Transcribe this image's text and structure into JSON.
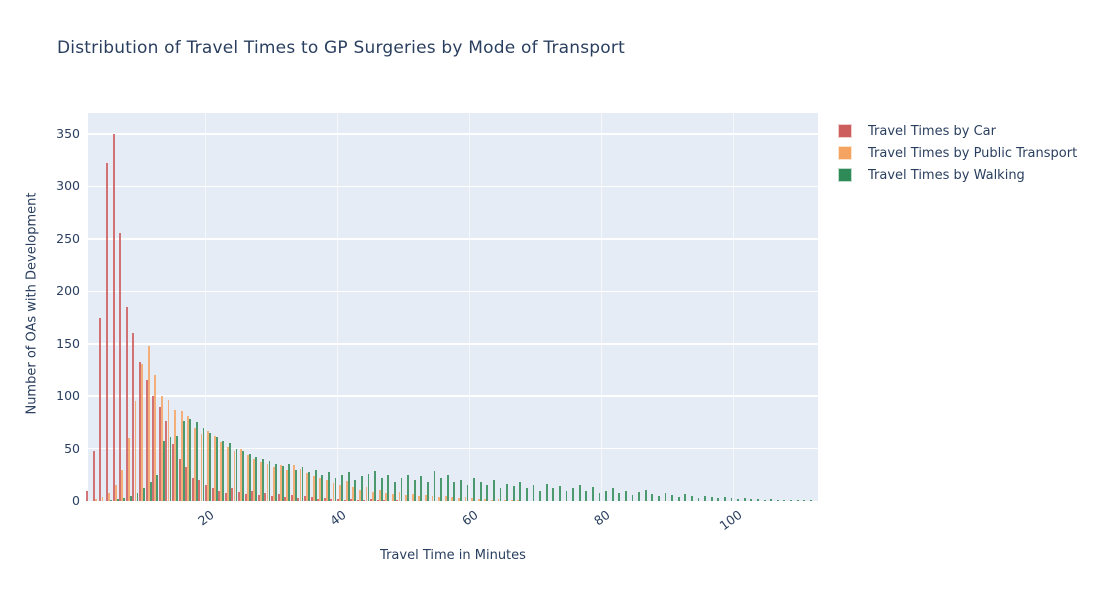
{
  "page_title": "Distribution of Travel Times to GP Surgeries by Mode of Transport",
  "colors": {
    "paper_bg": "#ffffff",
    "plot_bg": "#e6ecf5",
    "grid": "#ffffff",
    "text": "#2a3f5f",
    "car": "#CD5C5C",
    "public_transport": "#F4A460",
    "walking": "#2E8B57"
  },
  "chart_data": {
    "type": "bar",
    "subtype": "grouped-histogram",
    "title": "Distribution of Travel Times to GP Surgeries by Mode of Transport",
    "xlabel": "Travel Time in Minutes",
    "ylabel": "Number of OAs with Development",
    "grid": true,
    "legend_position": "right-outside",
    "xlim": [
      2.3,
      112.9
    ],
    "ylim": [
      0,
      370
    ],
    "x_ticks": [
      20,
      40,
      60,
      80,
      100
    ],
    "y_ticks": [
      0,
      50,
      100,
      150,
      200,
      250,
      300,
      350
    ],
    "bin_width_minutes": 1,
    "x_start": 2,
    "x_step": 1,
    "x": [
      2,
      3,
      4,
      5,
      6,
      7,
      8,
      9,
      10,
      11,
      12,
      13,
      14,
      15,
      16,
      17,
      18,
      19,
      20,
      21,
      22,
      23,
      24,
      25,
      26,
      27,
      28,
      29,
      30,
      31,
      32,
      33,
      34,
      35,
      36,
      37,
      38,
      39,
      40,
      41,
      42,
      43,
      44,
      45,
      46,
      47,
      48,
      49,
      50,
      51,
      52,
      53,
      54,
      55,
      56,
      57,
      58,
      59,
      60,
      61,
      62,
      63,
      64,
      65,
      66,
      67,
      68,
      69,
      70,
      71,
      72,
      73,
      74,
      75,
      76,
      77,
      78,
      79,
      80,
      81,
      82,
      83,
      84,
      85,
      86,
      87,
      88,
      89,
      90,
      91,
      92,
      93,
      94,
      95,
      96,
      97,
      98,
      99,
      100,
      101,
      102,
      103,
      104,
      105,
      106,
      107,
      108,
      109,
      110,
      111
    ],
    "series": [
      {
        "name": "Travel Times by Car",
        "color": "#CD5C5C",
        "values": [
          10,
          48,
          175,
          322,
          350,
          256,
          185,
          160,
          133,
          115,
          100,
          90,
          76,
          54,
          40,
          32,
          22,
          20,
          15,
          12,
          10,
          8,
          12,
          9,
          7,
          10,
          6,
          8,
          5,
          7,
          4,
          6,
          3,
          5,
          4,
          2,
          3,
          2,
          2,
          1,
          2,
          1,
          1,
          2,
          1,
          1,
          0,
          1,
          0,
          0,
          0,
          0,
          0,
          0,
          0,
          0,
          0,
          0,
          0,
          0,
          0,
          0,
          0,
          0,
          0,
          0,
          0,
          0,
          0,
          0,
          0,
          0,
          0,
          0,
          0,
          0,
          0,
          0,
          0,
          0,
          0,
          0,
          0,
          0,
          0,
          0,
          0,
          0,
          0,
          0,
          0,
          0,
          0,
          0,
          0,
          0,
          0,
          0,
          0,
          0,
          0,
          0,
          0,
          0,
          0,
          0,
          0,
          0,
          0,
          0
        ]
      },
      {
        "name": "Travel Times by Public Transport",
        "color": "#F4A460",
        "values": [
          0,
          2,
          4,
          8,
          15,
          30,
          60,
          95,
          131,
          148,
          120,
          100,
          96,
          87,
          86,
          81,
          70,
          64,
          67,
          62,
          56,
          52,
          48,
          50,
          44,
          40,
          37,
          35,
          32,
          34,
          30,
          34,
          31,
          27,
          24,
          22,
          20,
          17,
          15,
          19,
          13,
          11,
          13,
          9,
          11,
          8,
          7,
          9,
          6,
          7,
          5,
          6,
          5,
          4,
          5,
          4,
          3,
          4,
          3,
          2,
          2,
          1,
          2,
          1,
          1,
          1,
          0,
          0,
          0,
          0,
          0,
          0,
          0,
          0,
          0,
          0,
          0,
          0,
          0,
          0,
          0,
          0,
          0,
          0,
          0,
          0,
          0,
          0,
          0,
          0,
          0,
          0,
          0,
          0,
          0,
          0,
          0,
          0,
          0,
          0,
          0,
          0,
          0,
          0,
          0,
          0,
          0,
          0,
          0,
          0
        ]
      },
      {
        "name": "Travel Times by Walking",
        "color": "#2E8B57",
        "values": [
          0,
          0,
          0,
          1,
          2,
          3,
          5,
          8,
          12,
          18,
          25,
          57,
          61,
          62,
          76,
          78,
          75,
          70,
          65,
          61,
          57,
          55,
          50,
          48,
          45,
          42,
          40,
          38,
          35,
          33,
          35,
          30,
          32,
          28,
          30,
          25,
          28,
          22,
          25,
          28,
          20,
          24,
          26,
          29,
          22,
          25,
          18,
          22,
          25,
          20,
          24,
          18,
          29,
          22,
          25,
          18,
          20,
          15,
          22,
          18,
          15,
          20,
          12,
          16,
          14,
          18,
          12,
          15,
          10,
          16,
          12,
          14,
          10,
          12,
          15,
          10,
          13,
          8,
          10,
          12,
          8,
          10,
          6,
          9,
          11,
          7,
          5,
          8,
          6,
          4,
          7,
          5,
          3,
          5,
          4,
          3,
          4,
          3,
          2,
          3,
          2,
          2,
          1,
          2,
          1,
          1,
          1,
          1,
          1,
          1
        ]
      }
    ]
  }
}
